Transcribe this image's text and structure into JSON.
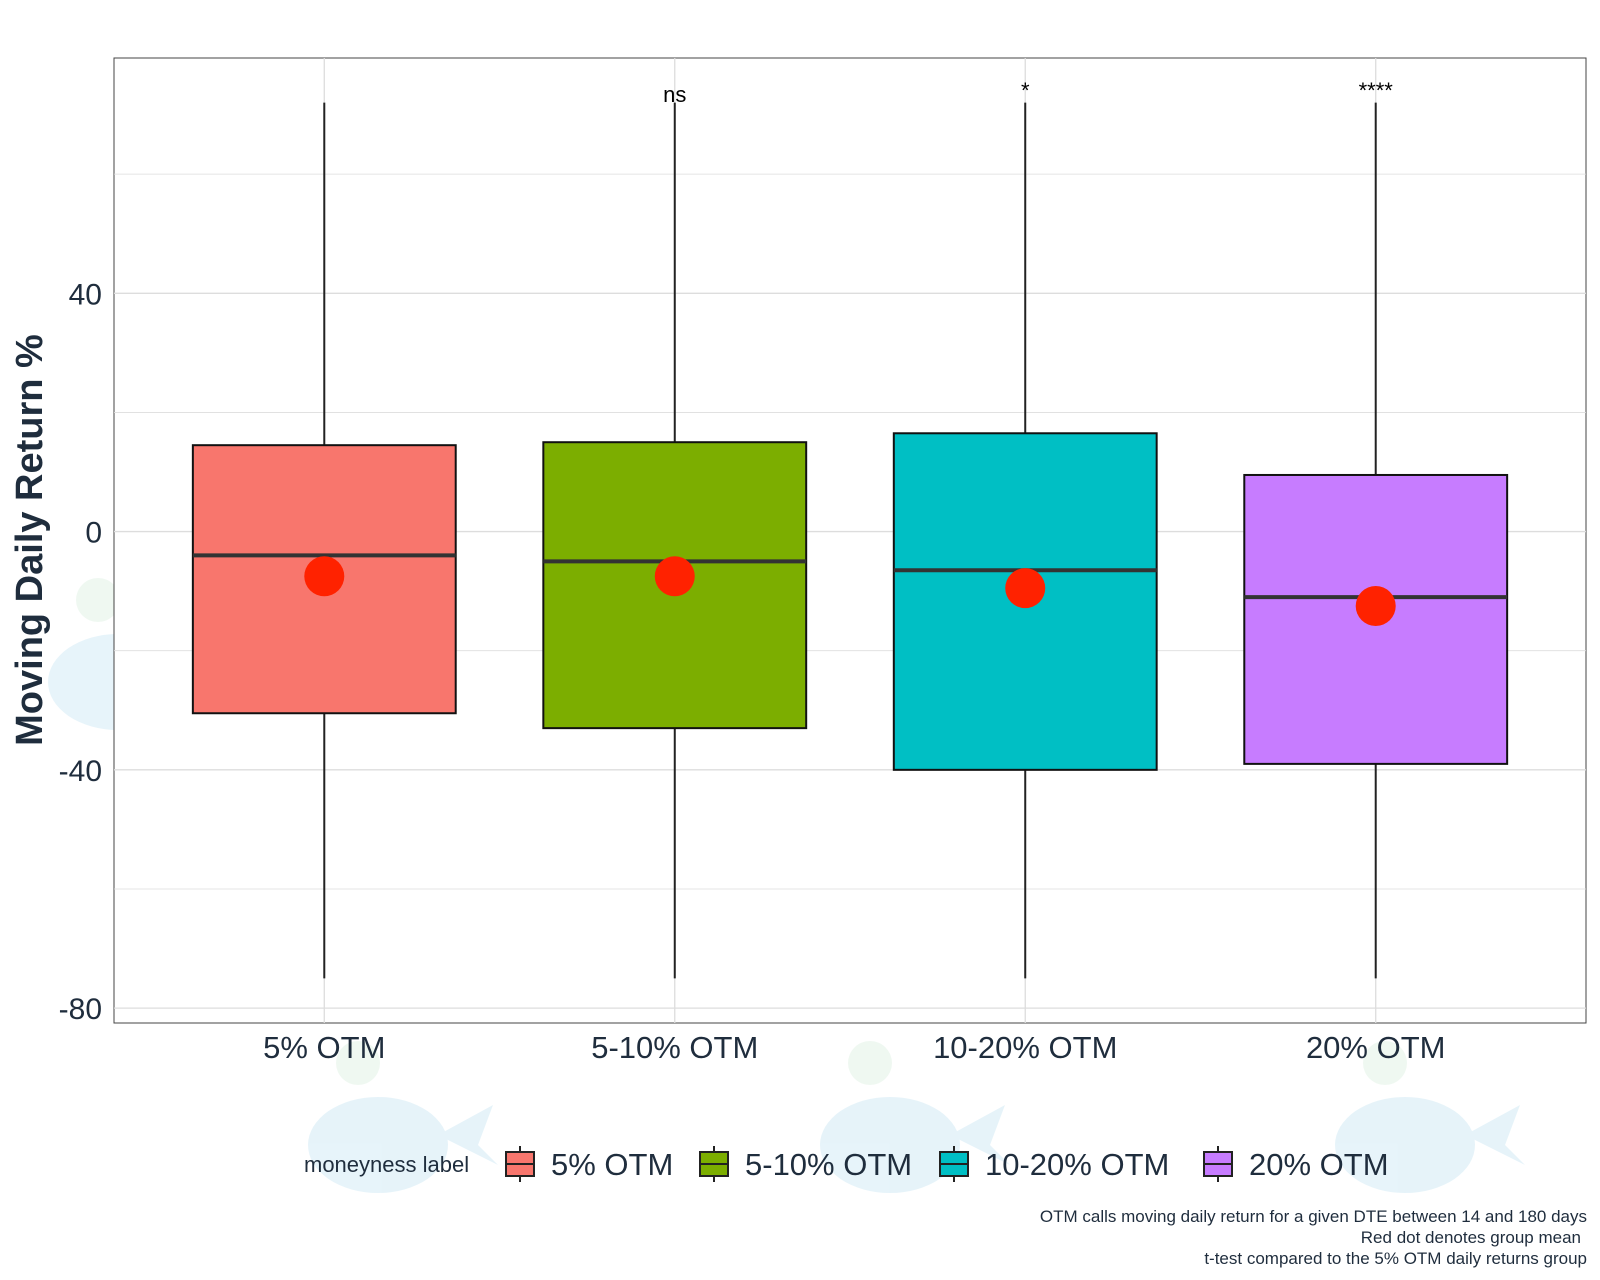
{
  "chart_data": {
    "type": "box",
    "ylabel": "Moving Daily Return %",
    "yticks": [
      40,
      0,
      -40,
      -80
    ],
    "ylim": [
      -82.5,
      79.5
    ],
    "grid": true,
    "categories": [
      "5% OTM",
      "5-10% OTM",
      "10-20% OTM",
      "20% OTM"
    ],
    "boxes": [
      {
        "category": "5% OTM",
        "whisker_low": -75,
        "q1": -30.5,
        "median": -4,
        "q3": 14.5,
        "whisker_high": 72,
        "mean": -7.5,
        "color": "#f8766d",
        "sig": ""
      },
      {
        "category": "5-10% OTM",
        "whisker_low": -75,
        "q1": -33,
        "median": -5,
        "q3": 15,
        "whisker_high": 72,
        "mean": -7.5,
        "color": "#7cae00",
        "sig": "ns"
      },
      {
        "category": "10-20% OTM",
        "whisker_low": -75,
        "q1": -40,
        "median": -6.5,
        "q3": 16.5,
        "whisker_high": 72,
        "mean": -9.5,
        "color": "#00bfc4",
        "sig": "*"
      },
      {
        "category": "20% OTM",
        "whisker_low": -75,
        "q1": -39,
        "median": -11,
        "q3": 9.5,
        "whisker_high": 72,
        "mean": -12.5,
        "color": "#c77cff",
        "sig": "****"
      }
    ],
    "mean_color": "#ff2200",
    "legend": {
      "title": "moneyness label",
      "position": "bottom",
      "entries": [
        "5% OTM",
        "5-10% OTM",
        "10-20% OTM",
        "20% OTM"
      ]
    },
    "caption": [
      "OTM calls moving daily return for a given DTE between 14 and 180 days",
      "Red dot denotes group mean",
      "t-test compared to the 5% OTM daily returns group"
    ]
  }
}
